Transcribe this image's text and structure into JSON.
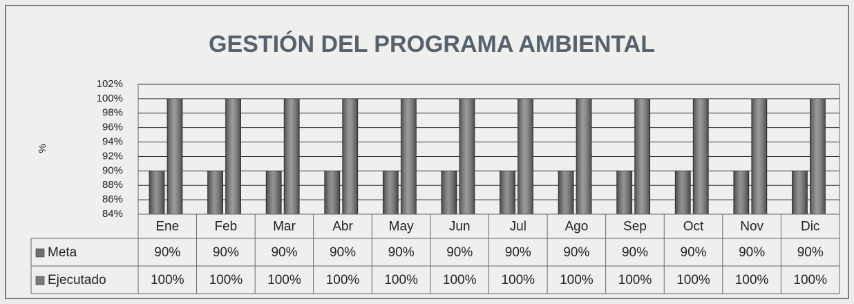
{
  "chart_data": {
    "type": "bar",
    "title": "GESTIÓN DEL PROGRAMA AMBIENTAL",
    "y_label": "%",
    "categories": [
      "Ene",
      "Feb",
      "Mar",
      "Abr",
      "May",
      "Jun",
      "Jul",
      "Ago",
      "Sep",
      "Oct",
      "Nov",
      "Dic"
    ],
    "series": [
      {
        "name": "Meta",
        "color": "#6f6f6f",
        "values": [
          90,
          90,
          90,
          90,
          90,
          90,
          90,
          90,
          90,
          90,
          90,
          90
        ],
        "value_labels": [
          "90%",
          "90%",
          "90%",
          "90%",
          "90%",
          "90%",
          "90%",
          "90%",
          "90%",
          "90%",
          "90%",
          "90%"
        ]
      },
      {
        "name": "Ejecutado",
        "color": "#7a7a7a",
        "values": [
          100,
          100,
          100,
          100,
          100,
          100,
          100,
          100,
          100,
          100,
          100,
          100
        ],
        "value_labels": [
          "100%",
          "100%",
          "100%",
          "100%",
          "100%",
          "100%",
          "100%",
          "100%",
          "100%",
          "100%",
          "100%",
          "100%"
        ]
      }
    ],
    "ylim": [
      84,
      102
    ],
    "yticks": [
      {
        "value": 84,
        "label": "84%"
      },
      {
        "value": 86,
        "label": "86%"
      },
      {
        "value": 88,
        "label": "88%"
      },
      {
        "value": 90,
        "label": "90%"
      },
      {
        "value": 92,
        "label": "92%"
      },
      {
        "value": 94,
        "label": "94%"
      },
      {
        "value": 96,
        "label": "96%"
      },
      {
        "value": 98,
        "label": "98%"
      },
      {
        "value": 100,
        "label": "100%"
      },
      {
        "value": 102,
        "label": "102%"
      }
    ],
    "grid": true,
    "data_table": true
  }
}
